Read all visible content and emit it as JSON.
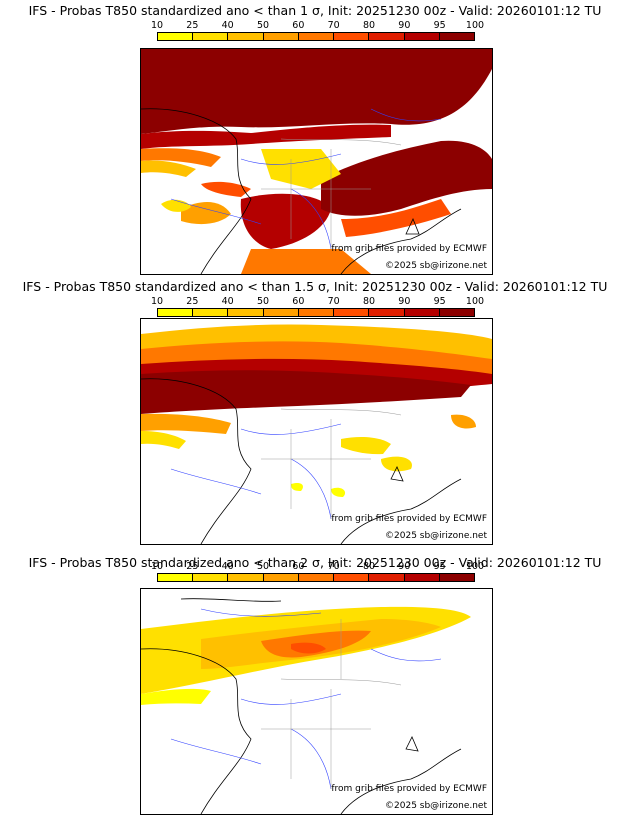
{
  "colorbar": {
    "ticks": [
      "10",
      "25",
      "40",
      "50",
      "60",
      "70",
      "80",
      "90",
      "95",
      "100"
    ],
    "colors": [
      "#ffff00",
      "#ffe000",
      "#ffc000",
      "#ffa000",
      "#ff7800",
      "#ff4e00",
      "#e01e00",
      "#b40000",
      "#8c0000"
    ]
  },
  "credits": {
    "source": "from grib files provided by ECMWF",
    "copyright": "©2025 sb@irizone.net"
  },
  "panels": [
    {
      "title": "IFS - Probas T850  standardized ano < than 1 σ, Init: 20251230 00z - Valid: 20260101:12 TU",
      "threshold": "1 σ"
    },
    {
      "title": "IFS - Probas T850  standardized ano < than 1.5 σ, Init: 20251230 00z - Valid: 20260101:12 TU",
      "threshold": "1.5 σ"
    },
    {
      "title": "IFS - Probas T850  standardized ano < than 2 σ, Init: 20251230 00z - Valid: 20260101:12 TU",
      "threshold": "2 σ"
    }
  ]
}
